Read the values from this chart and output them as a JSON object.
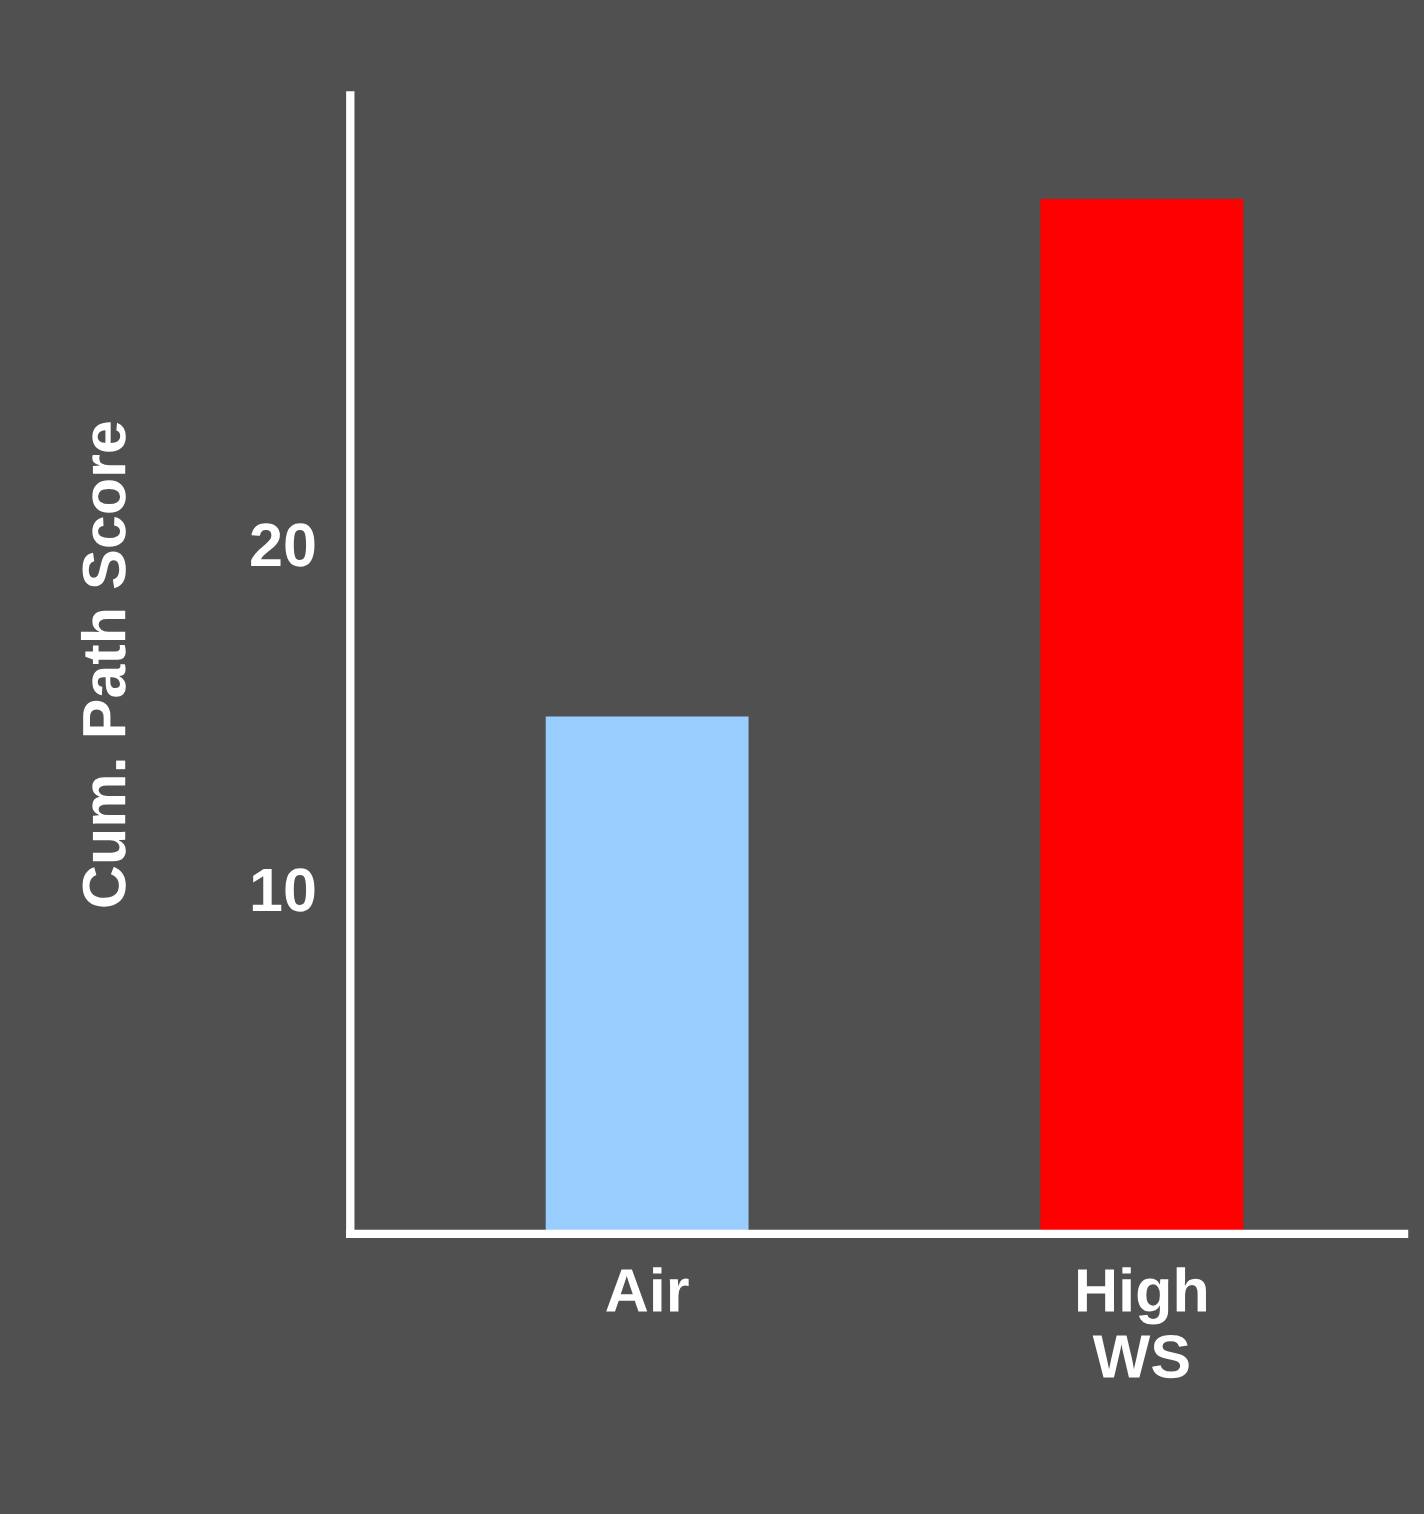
{
  "chart_data": {
    "type": "bar",
    "ylabel": "Cum. Path Score",
    "categories": [
      "Air",
      "High\nWS"
    ],
    "values": [
      15,
      30
    ],
    "colors": [
      "#99ccff",
      "#ff0000"
    ],
    "ylim": [
      0,
      33
    ],
    "yticks": [
      10,
      20
    ],
    "grid": false
  }
}
